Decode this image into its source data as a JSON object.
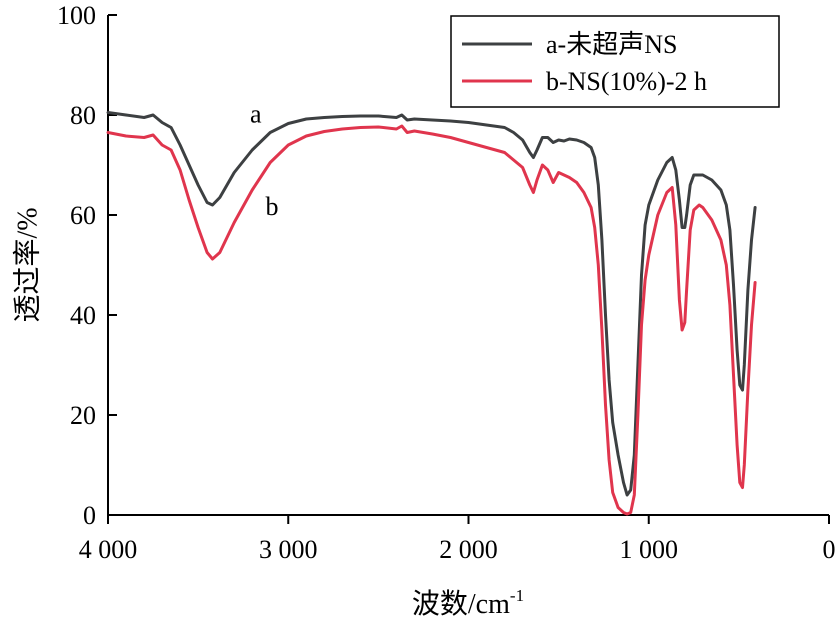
{
  "chart_data": {
    "type": "line",
    "title": "",
    "xlabel": "波数/cm",
    "xlabel_sup": "-1",
    "ylabel": "透过率/%",
    "xlim": [
      4000,
      0
    ],
    "ylim": [
      0,
      100
    ],
    "x_reversed": true,
    "grid": false,
    "legend_position": "top-right",
    "x_ticks": [
      4000,
      3000,
      2000,
      1000,
      0
    ],
    "x_tick_labels": [
      "4 000",
      "3 000",
      "2 000",
      "1 000",
      "0"
    ],
    "y_ticks": [
      0,
      20,
      40,
      60,
      80,
      100
    ],
    "y_tick_labels": [
      "0",
      "20",
      "40",
      "60",
      "80",
      "100"
    ],
    "series": [
      {
        "name": "a-未超声NS",
        "color": "#3d4042",
        "points": [
          [
            4000,
            80.5
          ],
          [
            3900,
            80.0
          ],
          [
            3800,
            79.5
          ],
          [
            3750,
            80.0
          ],
          [
            3700,
            78.5
          ],
          [
            3650,
            77.5
          ],
          [
            3600,
            74.0
          ],
          [
            3550,
            70.0
          ],
          [
            3500,
            66.0
          ],
          [
            3450,
            62.5
          ],
          [
            3420,
            62.0
          ],
          [
            3380,
            63.5
          ],
          [
            3300,
            68.5
          ],
          [
            3200,
            73.0
          ],
          [
            3100,
            76.5
          ],
          [
            3000,
            78.3
          ],
          [
            2900,
            79.2
          ],
          [
            2800,
            79.5
          ],
          [
            2700,
            79.7
          ],
          [
            2600,
            79.8
          ],
          [
            2500,
            79.8
          ],
          [
            2400,
            79.5
          ],
          [
            2370,
            80.0
          ],
          [
            2340,
            79.0
          ],
          [
            2300,
            79.2
          ],
          [
            2200,
            79.0
          ],
          [
            2100,
            78.8
          ],
          [
            2000,
            78.5
          ],
          [
            1900,
            78.0
          ],
          [
            1800,
            77.5
          ],
          [
            1750,
            76.5
          ],
          [
            1700,
            75.0
          ],
          [
            1660,
            72.5
          ],
          [
            1640,
            71.5
          ],
          [
            1620,
            73.0
          ],
          [
            1590,
            75.5
          ],
          [
            1560,
            75.5
          ],
          [
            1530,
            74.5
          ],
          [
            1500,
            75.0
          ],
          [
            1470,
            74.8
          ],
          [
            1440,
            75.2
          ],
          [
            1400,
            75.0
          ],
          [
            1360,
            74.5
          ],
          [
            1320,
            73.5
          ],
          [
            1300,
            71.5
          ],
          [
            1280,
            66.0
          ],
          [
            1260,
            55.0
          ],
          [
            1240,
            40.0
          ],
          [
            1220,
            27.0
          ],
          [
            1200,
            18.5
          ],
          [
            1170,
            12.0
          ],
          [
            1140,
            6.5
          ],
          [
            1120,
            4.0
          ],
          [
            1100,
            5.0
          ],
          [
            1080,
            12.0
          ],
          [
            1060,
            30.0
          ],
          [
            1040,
            48.0
          ],
          [
            1020,
            58.0
          ],
          [
            1000,
            62.0
          ],
          [
            950,
            67.0
          ],
          [
            900,
            70.5
          ],
          [
            870,
            71.5
          ],
          [
            850,
            69.0
          ],
          [
            830,
            63.0
          ],
          [
            815,
            57.5
          ],
          [
            800,
            57.5
          ],
          [
            790,
            60.0
          ],
          [
            770,
            66.0
          ],
          [
            750,
            68.0
          ],
          [
            700,
            68.0
          ],
          [
            650,
            67.0
          ],
          [
            600,
            65.0
          ],
          [
            570,
            62.0
          ],
          [
            550,
            57.0
          ],
          [
            530,
            46.0
          ],
          [
            510,
            33.0
          ],
          [
            495,
            26.0
          ],
          [
            480,
            25.0
          ],
          [
            470,
            30.0
          ],
          [
            450,
            45.0
          ],
          [
            430,
            55.0
          ],
          [
            410,
            61.5
          ]
        ]
      },
      {
        "name": "b-NS(10%)-2 h",
        "color": "#e0354d",
        "points": [
          [
            4000,
            76.5
          ],
          [
            3900,
            75.8
          ],
          [
            3800,
            75.5
          ],
          [
            3750,
            76.0
          ],
          [
            3700,
            74.0
          ],
          [
            3650,
            73.0
          ],
          [
            3600,
            69.0
          ],
          [
            3550,
            63.0
          ],
          [
            3500,
            57.5
          ],
          [
            3450,
            52.5
          ],
          [
            3420,
            51.2
          ],
          [
            3380,
            52.5
          ],
          [
            3300,
            58.5
          ],
          [
            3200,
            65.0
          ],
          [
            3100,
            70.5
          ],
          [
            3000,
            74.0
          ],
          [
            2900,
            75.8
          ],
          [
            2800,
            76.7
          ],
          [
            2700,
            77.2
          ],
          [
            2600,
            77.5
          ],
          [
            2500,
            77.6
          ],
          [
            2400,
            77.2
          ],
          [
            2370,
            77.8
          ],
          [
            2340,
            76.5
          ],
          [
            2300,
            76.8
          ],
          [
            2200,
            76.2
          ],
          [
            2100,
            75.5
          ],
          [
            2000,
            74.5
          ],
          [
            1900,
            73.5
          ],
          [
            1800,
            72.5
          ],
          [
            1750,
            71.0
          ],
          [
            1700,
            69.5
          ],
          [
            1660,
            66.0
          ],
          [
            1640,
            64.5
          ],
          [
            1620,
            67.0
          ],
          [
            1590,
            70.0
          ],
          [
            1560,
            69.0
          ],
          [
            1530,
            66.5
          ],
          [
            1500,
            68.5
          ],
          [
            1470,
            68.0
          ],
          [
            1440,
            67.5
          ],
          [
            1400,
            66.5
          ],
          [
            1360,
            64.5
          ],
          [
            1320,
            61.5
          ],
          [
            1300,
            57.5
          ],
          [
            1280,
            50.0
          ],
          [
            1260,
            37.0
          ],
          [
            1240,
            22.0
          ],
          [
            1220,
            11.0
          ],
          [
            1200,
            4.5
          ],
          [
            1170,
            1.5
          ],
          [
            1140,
            0.5
          ],
          [
            1120,
            0.2
          ],
          [
            1100,
            0.5
          ],
          [
            1080,
            4.0
          ],
          [
            1060,
            20.0
          ],
          [
            1040,
            38.0
          ],
          [
            1020,
            47.0
          ],
          [
            1000,
            52.0
          ],
          [
            950,
            60.0
          ],
          [
            900,
            64.5
          ],
          [
            870,
            65.5
          ],
          [
            850,
            58.0
          ],
          [
            830,
            43.0
          ],
          [
            815,
            37.0
          ],
          [
            800,
            38.5
          ],
          [
            790,
            45.0
          ],
          [
            770,
            57.0
          ],
          [
            750,
            61.0
          ],
          [
            720,
            62.0
          ],
          [
            700,
            61.5
          ],
          [
            650,
            59.0
          ],
          [
            600,
            55.0
          ],
          [
            570,
            50.0
          ],
          [
            550,
            42.0
          ],
          [
            530,
            28.0
          ],
          [
            510,
            14.0
          ],
          [
            495,
            6.5
          ],
          [
            480,
            5.5
          ],
          [
            470,
            10.0
          ],
          [
            450,
            25.0
          ],
          [
            430,
            38.0
          ],
          [
            410,
            46.5
          ]
        ]
      }
    ],
    "annotations": [
      {
        "text": "a",
        "x": 3180,
        "y": 78.5
      },
      {
        "text": "b",
        "x": 3090,
        "y": 60.0
      }
    ]
  }
}
